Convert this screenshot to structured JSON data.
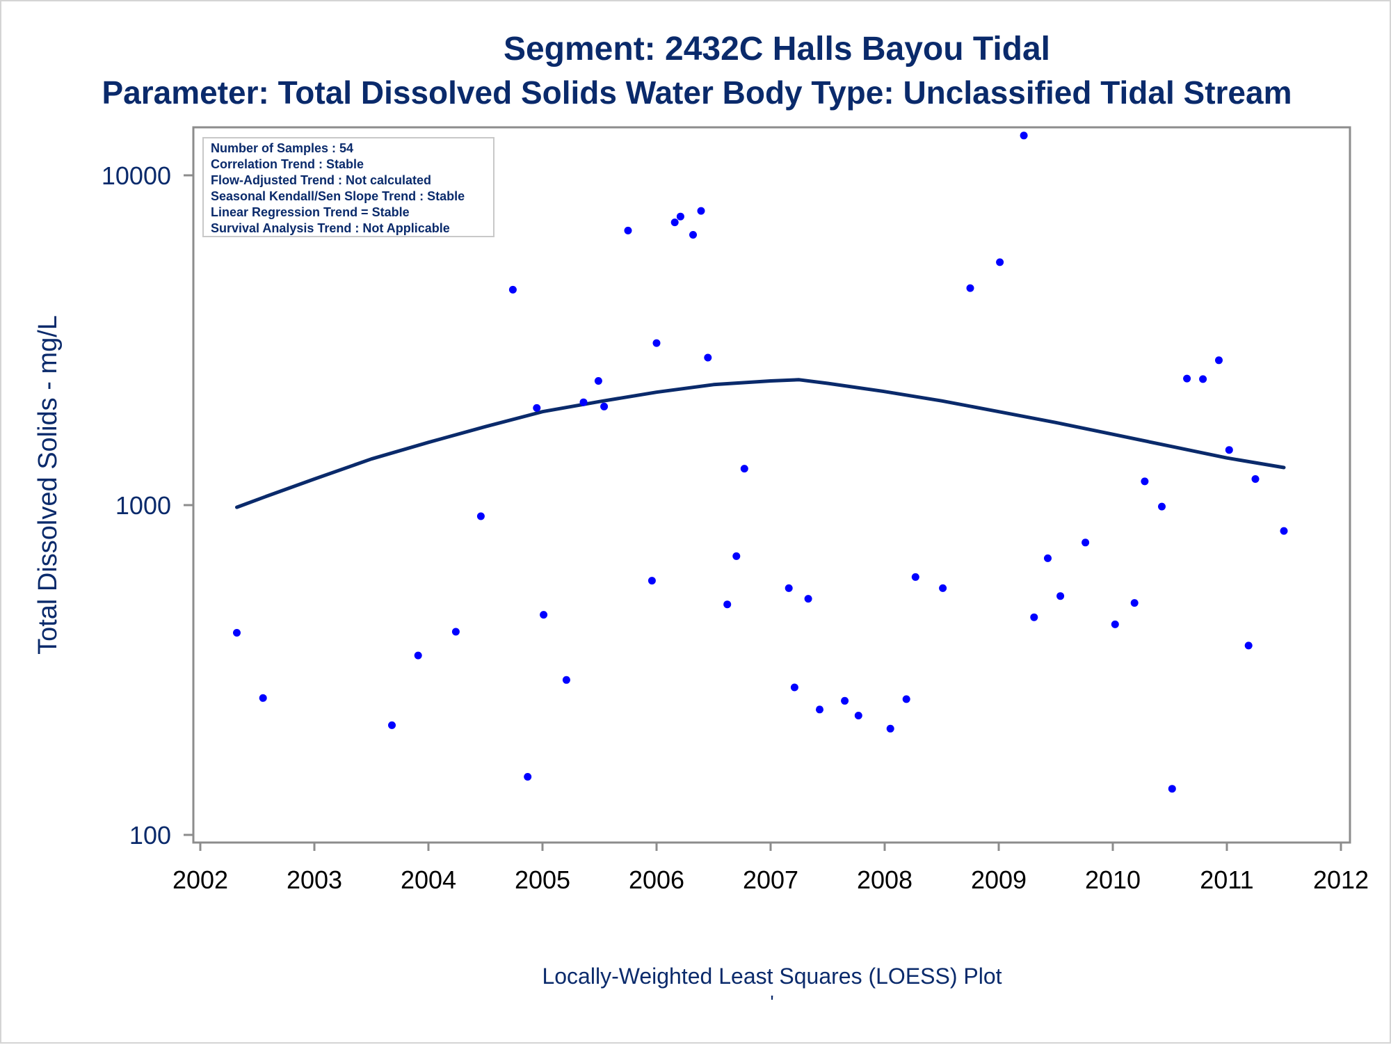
{
  "chart_data": {
    "type": "scatter",
    "title": "Segment: 2432C  Halls Bayou Tidal",
    "subtitle": "Parameter: Total Dissolved Solids   Water Body Type: Unclassified Tidal Stream",
    "xlabel": "Locally-Weighted Least Squares (LOESS) Plot",
    "footnote": "'",
    "ylabel": "Total Dissolved Solids - mg/L",
    "yscale": "log",
    "xlim": [
      2002,
      2012
    ],
    "ylim": [
      100,
      13500
    ],
    "x_ticks": [
      "2002",
      "2003",
      "2004",
      "2005",
      "2006",
      "2007",
      "2008",
      "2009",
      "2010",
      "2011",
      "2012"
    ],
    "y_ticks": [
      "100",
      "1000",
      "10000"
    ],
    "grid": false,
    "info_box": {
      "placement": "top-left",
      "lines": [
        "Number of Samples : 54",
        "Correlation Trend : Stable",
        "Flow-Adjusted Trend : Not calculated",
        "Seasonal Kendall/Sen Slope Trend : Stable",
        "Linear Regression Trend = Stable",
        "Survival Analysis Trend : Not Applicable"
      ]
    },
    "colors": {
      "points": "#0000ff",
      "loess": "#0a2a6b",
      "text": "#0a2a6b",
      "axis": "#8c8c8c"
    },
    "series": [
      {
        "type": "scatter",
        "points": [
          [
            2002.32,
            410
          ],
          [
            2002.55,
            260
          ],
          [
            2003.68,
            215
          ],
          [
            2003.91,
            350
          ],
          [
            2004.24,
            413
          ],
          [
            2004.46,
            925
          ],
          [
            2004.74,
            4500
          ],
          [
            2004.87,
            150
          ],
          [
            2004.95,
            1970
          ],
          [
            2005.01,
            465
          ],
          [
            2005.21,
            295
          ],
          [
            2005.36,
            2050
          ],
          [
            2005.49,
            2380
          ],
          [
            2005.54,
            1990
          ],
          [
            2005.75,
            6800
          ],
          [
            2005.96,
            590
          ],
          [
            2006.0,
            3100
          ],
          [
            2006.16,
            7200
          ],
          [
            2006.21,
            7500
          ],
          [
            2006.32,
            6600
          ],
          [
            2006.39,
            7800
          ],
          [
            2006.45,
            2800
          ],
          [
            2006.62,
            500
          ],
          [
            2006.7,
            700
          ],
          [
            2006.77,
            1290
          ],
          [
            2007.16,
            560
          ],
          [
            2007.21,
            280
          ],
          [
            2007.33,
            520
          ],
          [
            2007.43,
            240
          ],
          [
            2007.65,
            255
          ],
          [
            2007.77,
            230
          ],
          [
            2008.05,
            210
          ],
          [
            2008.19,
            258
          ],
          [
            2008.27,
            605
          ],
          [
            2008.51,
            560
          ],
          [
            2008.75,
            4550
          ],
          [
            2009.01,
            5450
          ],
          [
            2009.22,
            13200
          ],
          [
            2009.31,
            457
          ],
          [
            2009.43,
            690
          ],
          [
            2009.54,
            530
          ],
          [
            2009.76,
            770
          ],
          [
            2010.02,
            435
          ],
          [
            2010.19,
            505
          ],
          [
            2010.28,
            1180
          ],
          [
            2010.43,
            990
          ],
          [
            2010.52,
            138
          ],
          [
            2010.65,
            2420
          ],
          [
            2010.79,
            2410
          ],
          [
            2010.93,
            2750
          ],
          [
            2011.02,
            1470
          ],
          [
            2011.19,
            375
          ],
          [
            2011.25,
            1200
          ],
          [
            2011.5,
            835
          ]
        ]
      },
      {
        "type": "line",
        "points": [
          [
            2002.32,
            985
          ],
          [
            2002.6,
            1070
          ],
          [
            2003.0,
            1200
          ],
          [
            2003.5,
            1380
          ],
          [
            2004.0,
            1550
          ],
          [
            2004.5,
            1730
          ],
          [
            2005.0,
            1920
          ],
          [
            2005.5,
            2060
          ],
          [
            2006.0,
            2200
          ],
          [
            2006.5,
            2320
          ],
          [
            2007.0,
            2380
          ],
          [
            2007.25,
            2400
          ],
          [
            2007.5,
            2340
          ],
          [
            2008.0,
            2210
          ],
          [
            2008.5,
            2070
          ],
          [
            2009.0,
            1920
          ],
          [
            2009.5,
            1780
          ],
          [
            2010.0,
            1640
          ],
          [
            2010.5,
            1510
          ],
          [
            2011.0,
            1390
          ],
          [
            2011.5,
            1300
          ]
        ]
      }
    ]
  }
}
